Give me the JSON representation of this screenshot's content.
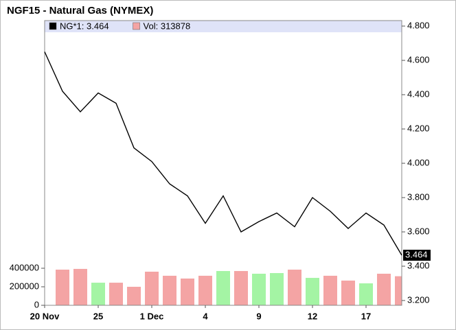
{
  "chart_data": {
    "type": "line",
    "title": "NGF15 - Natural Gas (NYMEX)",
    "categories": [
      "20 Nov",
      null,
      null,
      "25",
      null,
      null,
      "1 Dec",
      null,
      null,
      "4",
      null,
      null,
      "9",
      null,
      null,
      "12",
      null,
      null,
      "17",
      null,
      null
    ],
    "series": [
      {
        "name": "NG*1: 3.464",
        "color": "#000000",
        "values": [
          4.65,
          4.42,
          4.3,
          4.41,
          4.35,
          4.09,
          4.01,
          3.88,
          3.81,
          3.65,
          3.81,
          3.6,
          3.66,
          3.71,
          3.63,
          3.8,
          3.72,
          3.62,
          3.71,
          3.64,
          3.464
        ],
        "value_labels": [
          null,
          null,
          null,
          null,
          null,
          null,
          null,
          null,
          null,
          null,
          null,
          null,
          null,
          null,
          null,
          null,
          null,
          null,
          null,
          null,
          "3.464"
        ]
      },
      {
        "name": "Vol: 313878",
        "type": "bar",
        "axis": "y2",
        "color": "#f4a4a4",
        "colors": [
          "#f4a4a4",
          "#f4a4a4",
          "#f4a4a4",
          "#a4f4a4",
          "#f4a4a4",
          "#f4a4a4",
          "#f4a4a4",
          "#f4a4a4",
          "#f4a4a4",
          "#f4a4a4",
          "#a4f4a4",
          "#f4a4a4",
          "#a4f4a4",
          "#a4f4a4",
          "#f4a4a4",
          "#a4f4a4",
          "#f4a4a4",
          "#f4a4a4",
          "#a4f4a4",
          "#f4a4a4",
          "#f4a4a4"
        ],
        "values": [
          null,
          385000,
          393000,
          244000,
          244000,
          200000,
          363000,
          319000,
          289000,
          319000,
          370000,
          370000,
          341000,
          348000,
          385000,
          296000,
          319000,
          267000,
          237000,
          341000,
          313878
        ]
      }
    ],
    "ylim": [
      3.172,
      4.832
    ],
    "yticks": [
      {
        "value": 3.2,
        "label": "3.200"
      },
      {
        "value": 3.4,
        "label": "3.400"
      },
      {
        "value": 3.6,
        "label": "3.600"
      },
      {
        "value": 3.8,
        "label": "3.800"
      },
      {
        "value": 4.0,
        "label": "4.000"
      },
      {
        "value": 4.2,
        "label": "4.200"
      },
      {
        "value": 4.4,
        "label": "4.400"
      },
      {
        "value": 4.6,
        "label": "4.600"
      },
      {
        "value": 4.8,
        "label": "4.800"
      }
    ],
    "y2lim": [
      0,
      3074000
    ],
    "y2ticks": [
      0,
      200000,
      400000
    ]
  }
}
